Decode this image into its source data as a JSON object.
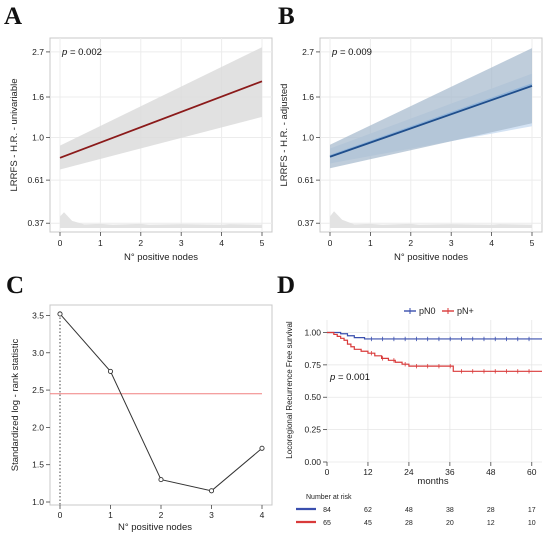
{
  "panel_labels": [
    "A",
    "B",
    "C",
    "D"
  ],
  "chart_data": [
    {
      "panel": "A",
      "type": "line",
      "xlabel": "N° positive nodes",
      "ylabel": "LRRFS - H.R. - univariable",
      "ylog": true,
      "yticks": [
        "0.37",
        "0.61",
        "1.0",
        "1.6",
        "2.7"
      ],
      "ytick_values": [
        0.37,
        0.61,
        1.0,
        1.6,
        2.7
      ],
      "xticks": [
        "0",
        "1",
        "2",
        "3",
        "4",
        "5"
      ],
      "xlim": [
        0,
        5
      ],
      "ylim": [
        0.35,
        3.1
      ],
      "annotation_p": "p",
      "annotation_value": "= 0.002",
      "line_color": "#8b1a1a",
      "band_color": "#dcdcdc",
      "series": [
        {
          "x": [
            0,
            5
          ],
          "y": [
            0.79,
            1.92
          ]
        }
      ],
      "ci_lower": [
        0.69,
        1.27
      ],
      "ci_upper": [
        0.91,
        2.85
      ],
      "density": [
        [
          0,
          0.4
        ],
        [
          0.1,
          0.42
        ],
        [
          0.3,
          0.38
        ],
        [
          0.6,
          0.365
        ],
        [
          1,
          0.367
        ],
        [
          1.3,
          0.364
        ],
        [
          2,
          0.367
        ],
        [
          2.2,
          0.364
        ],
        [
          3,
          0.366
        ],
        [
          4,
          0.364
        ],
        [
          4.2,
          0.366
        ],
        [
          5,
          0.364
        ]
      ]
    },
    {
      "panel": "B",
      "type": "line",
      "xlabel": "N° positive nodes",
      "ylabel": "LRRFS - H.R. - adjusted",
      "ylog": true,
      "yticks": [
        "0.37",
        "0.61",
        "1.0",
        "1.6",
        "2.7"
      ],
      "ytick_values": [
        0.37,
        0.61,
        1.0,
        1.6,
        2.7
      ],
      "xticks": [
        "0",
        "1",
        "2",
        "3",
        "4",
        "5"
      ],
      "xlim": [
        0,
        5
      ],
      "ylim": [
        0.35,
        3.1
      ],
      "annotation_p": "p",
      "annotation_value": "= 0.009",
      "line_color": "#1f4e8c",
      "line2_color": "#8fb3d9",
      "band_color": "#a9bccf",
      "band2_color": "#cfe0f3",
      "series": [
        {
          "x": [
            0,
            5
          ],
          "y": [
            0.8,
            1.82
          ]
        },
        {
          "x": [
            0,
            5
          ],
          "y": [
            0.81,
            1.86
          ]
        }
      ],
      "ci_lower": [
        0.7,
        1.18
      ],
      "ci_upper": [
        0.92,
        2.82
      ],
      "ci2_lower": [
        0.74,
        1.14
      ],
      "ci2_upper": [
        0.88,
        2.1
      ],
      "density": [
        [
          0,
          0.4
        ],
        [
          0.1,
          0.425
        ],
        [
          0.3,
          0.385
        ],
        [
          0.6,
          0.365
        ],
        [
          1,
          0.367
        ],
        [
          1.3,
          0.364
        ],
        [
          2,
          0.367
        ],
        [
          2.2,
          0.364
        ],
        [
          3,
          0.366
        ],
        [
          4,
          0.364
        ],
        [
          4.2,
          0.366
        ],
        [
          5,
          0.364
        ]
      ]
    },
    {
      "panel": "C",
      "type": "line",
      "xlabel": "N° positive nodes",
      "ylabel": "Standardized log - rank statistic",
      "xticks": [
        "0",
        "1",
        "2",
        "3",
        "4"
      ],
      "xlim": [
        0,
        4
      ],
      "yticks": [
        "1.0",
        "1.5",
        "2.0",
        "2.5",
        "3.0",
        "3.5"
      ],
      "ytick_values": [
        1.0,
        1.5,
        2.0,
        2.5,
        3.0,
        3.5
      ],
      "ylim": [
        1.0,
        3.6
      ],
      "threshold": 2.45,
      "threshold_color": "#f08080",
      "series": [
        {
          "x": [
            0,
            1,
            2,
            3,
            4
          ],
          "y": [
            3.52,
            2.75,
            1.3,
            1.15,
            1.72
          ]
        }
      ]
    },
    {
      "panel": "D",
      "type": "line",
      "xlabel": "months",
      "ylabel": "Locoregional Recurrence Free survival",
      "xticks": [
        "0",
        "12",
        "24",
        "36",
        "48",
        "60"
      ],
      "xtick_values": [
        0,
        12,
        24,
        36,
        48,
        60
      ],
      "xlim": [
        0,
        63
      ],
      "yticks": [
        "0.00",
        "0.25",
        "0.50",
        "0.75",
        "1.00"
      ],
      "ytick_values": [
        0,
        0.25,
        0.5,
        0.75,
        1.0
      ],
      "ylim": [
        0,
        1.05
      ],
      "annotation_p": "p",
      "annotation_value": "= 0.001",
      "legend_position": "top",
      "series": [
        {
          "name": "pN0",
          "color": "#3a4fae",
          "steps": [
            [
              0,
              1.0
            ],
            [
              4,
              0.99
            ],
            [
              6,
              0.975
            ],
            [
              8,
              0.96
            ],
            [
              11,
              0.95
            ],
            [
              63,
              0.95
            ]
          ]
        },
        {
          "name": "pN+",
          "color": "#d93a3a",
          "steps": [
            [
              0,
              1.0
            ],
            [
              2,
              0.985
            ],
            [
              3,
              0.97
            ],
            [
              4,
              0.955
            ],
            [
              5,
              0.94
            ],
            [
              6,
              0.91
            ],
            [
              7,
              0.89
            ],
            [
              8,
              0.87
            ],
            [
              10,
              0.855
            ],
            [
              12,
              0.84
            ],
            [
              14,
              0.82
            ],
            [
              16,
              0.8
            ],
            [
              18,
              0.785
            ],
            [
              20,
              0.77
            ],
            [
              22,
              0.755
            ],
            [
              24,
              0.74
            ],
            [
              36,
              0.74
            ],
            [
              37,
              0.7
            ],
            [
              63,
              0.7
            ]
          ]
        }
      ],
      "risk_title": "Number at risk",
      "risk_times": [
        0,
        12,
        24,
        36,
        48,
        60
      ],
      "risk_rows": [
        {
          "name": "pN0",
          "color": "#3a4fae",
          "values": [
            "84",
            "62",
            "48",
            "38",
            "28",
            "17"
          ]
        },
        {
          "name": "pN+",
          "color": "#d93a3a",
          "values": [
            "65",
            "45",
            "28",
            "20",
            "12",
            "10"
          ]
        }
      ]
    }
  ]
}
